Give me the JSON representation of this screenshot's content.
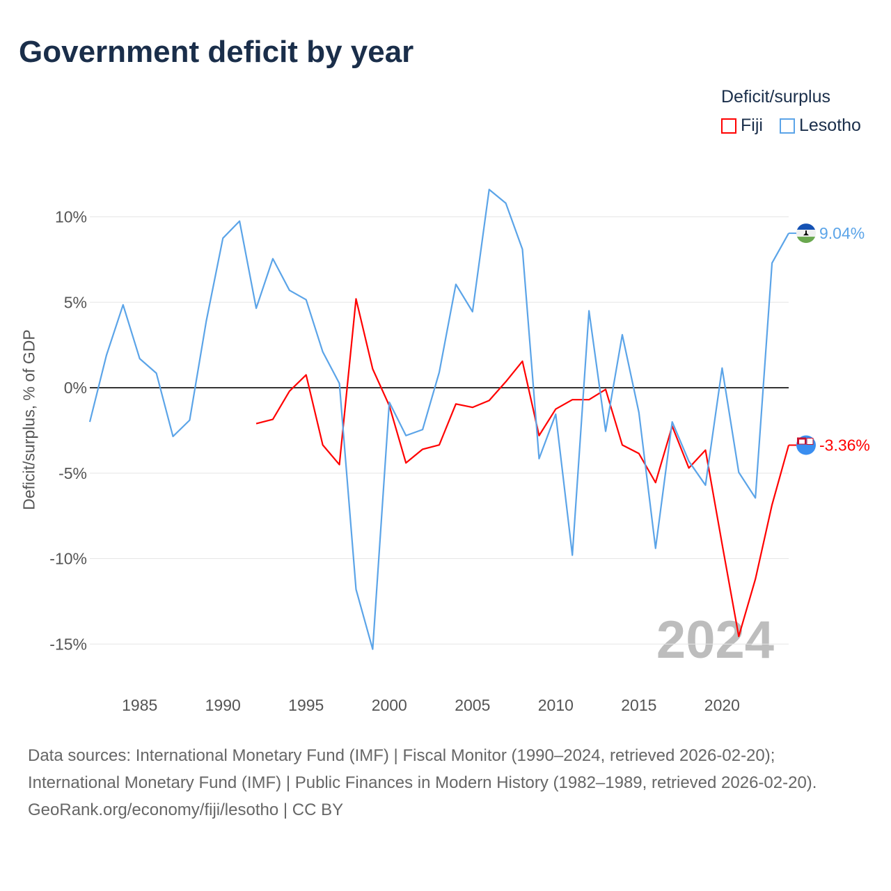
{
  "title": "Government deficit by year",
  "legend": {
    "title": "Deficit/surplus",
    "items": [
      {
        "name": "Fiji",
        "color": "#ff0000"
      },
      {
        "name": "Lesotho",
        "color": "#5ba4e8"
      }
    ]
  },
  "year_watermark": "2024",
  "footer": {
    "sources": "Data sources: International Monetary Fund (IMF) | Fiscal Monitor (1990–2024, retrieved 2026-02-20); International Monetary Fund (IMF) | Public Finances in Modern History (1982–1989, retrieved 2026-02-20).",
    "credit": "GeoRank.org/economy/fiji/lesotho | CC BY"
  },
  "chart_data": {
    "type": "line",
    "title": "Government deficit by year",
    "ylabel": "Deficit/surplus, % of GDP",
    "xlabel": "",
    "xlim": [
      1982,
      2024
    ],
    "ylim": [
      -16.5,
      13
    ],
    "xticks": [
      1985,
      1990,
      1995,
      2000,
      2005,
      2010,
      2015,
      2020
    ],
    "yticks": [
      10,
      5,
      0,
      -5,
      -10,
      -15
    ],
    "ytick_labels": [
      "10%",
      "5%",
      "0%",
      "-5%",
      "-10%",
      "-15%"
    ],
    "legend_position": "top-right",
    "series": [
      {
        "name": "Fiji",
        "color": "#ff0000",
        "start_year": 1992,
        "end_label": "-3.36%",
        "values": [
          -2.1,
          -1.85,
          -0.2,
          0.75,
          -3.35,
          -4.5,
          5.2,
          1.1,
          -1.05,
          -4.4,
          -3.6,
          -3.35,
          -0.95,
          -1.15,
          -0.75,
          0.35,
          1.55,
          -2.8,
          -1.25,
          -0.7,
          -0.7,
          -0.1,
          -3.35,
          -3.85,
          -5.55,
          -2.25,
          -4.7,
          -3.65,
          -9.15,
          -14.55,
          -11.2,
          -6.85,
          -3.36
        ]
      },
      {
        "name": "Lesotho",
        "color": "#5ba4e8",
        "start_year": 1982,
        "end_label": "9.04%",
        "values": [
          -2.0,
          1.9,
          4.85,
          1.7,
          0.85,
          -2.85,
          -1.9,
          3.9,
          8.75,
          9.75,
          4.65,
          7.55,
          5.7,
          5.15,
          2.1,
          0.25,
          -11.8,
          -15.3,
          -0.85,
          -2.8,
          -2.45,
          0.9,
          6.05,
          4.45,
          11.6,
          10.8,
          8.1,
          -4.15,
          -1.55,
          -9.8,
          4.5,
          -2.55,
          3.1,
          -1.45,
          -9.4,
          -2.0,
          -4.3,
          -5.7,
          1.15,
          -4.95,
          -6.45,
          7.3,
          9.04
        ]
      }
    ]
  }
}
